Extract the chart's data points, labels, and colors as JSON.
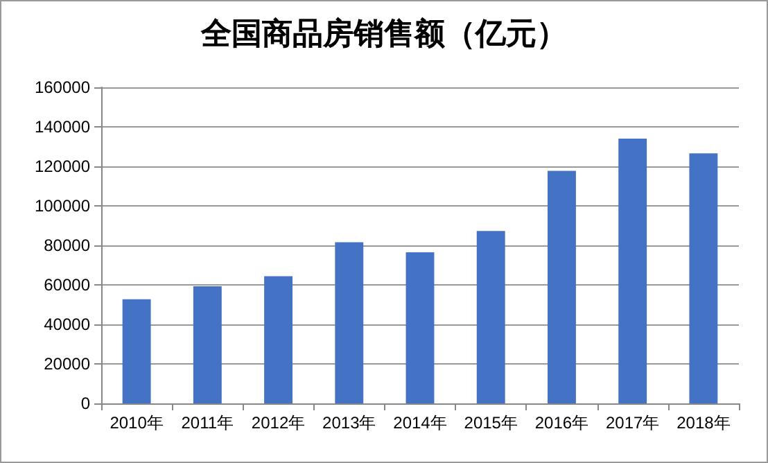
{
  "chart_data": {
    "type": "bar",
    "title": "全国商品房销售额（亿元）",
    "categories": [
      "2010年",
      "2011年",
      "2012年",
      "2013年",
      "2014年",
      "2015年",
      "2016年",
      "2017年",
      "2018年"
    ],
    "values": [
      52700,
      59300,
      64400,
      81600,
      76500,
      87300,
      117700,
      134000,
      126600
    ],
    "color": "#4472c4",
    "ylim": [
      0,
      160000
    ],
    "yticks": [
      0,
      20000,
      40000,
      60000,
      80000,
      100000,
      120000,
      140000,
      160000
    ],
    "grid": "y"
  }
}
